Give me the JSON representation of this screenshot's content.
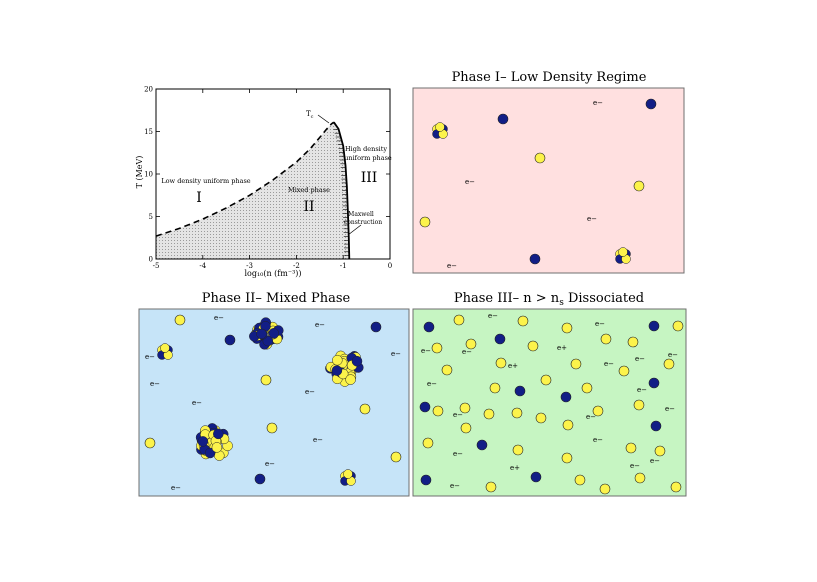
{
  "colors": {
    "yellow": "#FCF34B",
    "navy": "#121E86",
    "panel1_bg": "#FFE0E0",
    "panel2_bg": "#C6E4F8",
    "panel3_bg": "#C6F5C2",
    "mixed_fill": "#E4E4E4"
  },
  "chart_data": {
    "type": "line",
    "xlabel": "log₁₀(n (fm⁻³))",
    "ylabel": "T (MeV)",
    "xlim": [
      -5,
      0
    ],
    "ylim": [
      0,
      20
    ],
    "xticks": [
      "-5",
      "-4",
      "-3",
      "-2",
      "-1",
      "0"
    ],
    "yticks": [
      "0",
      "5",
      "10",
      "15",
      "20"
    ],
    "grid": false,
    "series": [
      {
        "x": [
          -5.0,
          -4.5,
          -4.0,
          -3.5,
          -3.0,
          -2.5,
          -2.0,
          -1.7,
          -1.5,
          -1.35,
          -1.25,
          -1.2
        ],
        "y": [
          2.7,
          3.6,
          4.7,
          6.0,
          7.5,
          9.3,
          11.4,
          13.0,
          14.3,
          15.3,
          15.9,
          16.1
        ]
      },
      {
        "x": [
          -1.2,
          -1.1,
          -1.0,
          -0.95,
          -0.92,
          -0.9,
          -0.88,
          -0.87
        ],
        "y": [
          16.1,
          15.3,
          13.3,
          11.0,
          8.5,
          5.5,
          2.5,
          0.0
        ]
      }
    ],
    "annotations": {
      "tc": "T",
      "tc_sub": "c",
      "low_density": "Low density uniform phase",
      "region1": "I",
      "mixed": "Mixed phase",
      "region2": "II",
      "high_density_1": "High density",
      "high_density_2": "uniform phase",
      "region3": "III",
      "maxwell_1": "Maxwell",
      "maxwell_2": "construction"
    }
  },
  "panels": {
    "phase1": {
      "title": "Phase I–  Low Density Regime",
      "electrons": [
        "e−",
        "e−",
        "e−",
        "e−"
      ]
    },
    "phase2": {
      "title": "Phase II–  Mixed Phase",
      "electrons": [
        "e−",
        "e−",
        "e−",
        "e−",
        "e−",
        "e−",
        "e−",
        "e−",
        "e−",
        "e−"
      ]
    },
    "phase3": {
      "title_main": "Phase III– n > n",
      "title_sub": "s",
      "title_tail": "  Dissociated",
      "electrons": [
        "e−",
        "e−",
        "e−",
        "e−",
        "e+",
        "e−",
        "e−",
        "e−",
        "e−",
        "e−",
        "e−",
        "e−",
        "e−",
        "e−",
        "e−",
        "e−",
        "e+",
        "e+",
        "e−",
        "e−"
      ]
    }
  }
}
